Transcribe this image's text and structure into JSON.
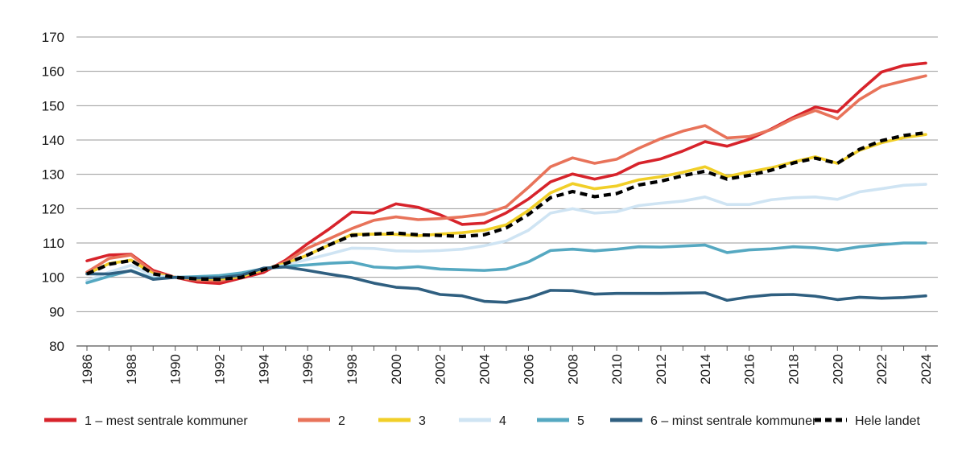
{
  "chart_data": {
    "type": "line",
    "title": "",
    "xlabel": "",
    "ylabel": "",
    "ylim": [
      80,
      170
    ],
    "yticks": [
      80,
      90,
      100,
      110,
      120,
      130,
      140,
      150,
      160,
      170
    ],
    "xlim": [
      1986,
      2024
    ],
    "xticks": [
      1986,
      1988,
      1990,
      1992,
      1994,
      1996,
      1998,
      2000,
      2002,
      2004,
      2006,
      2008,
      2010,
      2012,
      2014,
      2016,
      2018,
      2020,
      2022,
      2024
    ],
    "grid": "horizontal",
    "legend_position": "bottom",
    "x": [
      1986,
      1987,
      1988,
      1989,
      1990,
      1991,
      1992,
      1993,
      1994,
      1995,
      1996,
      1997,
      1998,
      1999,
      2000,
      2001,
      2002,
      2003,
      2004,
      2005,
      2006,
      2007,
      2008,
      2009,
      2010,
      2011,
      2012,
      2013,
      2014,
      2015,
      2016,
      2017,
      2018,
      2019,
      2020,
      2021,
      2022,
      2023,
      2024
    ],
    "series": [
      {
        "name": "1 – mest sentrale kommuner",
        "color": "#d7232b",
        "dash": false,
        "values": [
          104.8,
          106.5,
          106.7,
          102.0,
          100.0,
          98.6,
          98.2,
          99.8,
          101.4,
          105.0,
          109.8,
          114.2,
          119.0,
          118.7,
          121.4,
          120.4,
          118.2,
          115.4,
          115.8,
          118.8,
          122.8,
          127.8,
          130.1,
          128.6,
          130.0,
          133.2,
          134.5,
          136.8,
          139.5,
          138.2,
          140.2,
          143.2,
          146.6,
          149.6,
          148.2,
          154.2,
          159.8,
          161.7,
          162.4
        ]
      },
      {
        "name": "2",
        "color": "#e8735a",
        "dash": false,
        "values": [
          101.5,
          105.5,
          106.5,
          101.5,
          100.0,
          99.2,
          99.0,
          100.2,
          102.0,
          104.5,
          108.5,
          111.3,
          114.2,
          116.6,
          117.6,
          116.8,
          117.1,
          117.6,
          118.4,
          120.6,
          126.2,
          132.2,
          134.8,
          133.2,
          134.4,
          137.6,
          140.4,
          142.6,
          144.2,
          140.6,
          141.0,
          143.0,
          146.2,
          148.6,
          146.2,
          151.8,
          155.6,
          157.2,
          158.7
        ]
      },
      {
        "name": "3",
        "color": "#f1cf28",
        "dash": false,
        "values": [
          101.0,
          104.0,
          105.0,
          101.0,
          100.0,
          99.6,
          99.5,
          100.2,
          102.3,
          104.0,
          106.5,
          109.5,
          112.5,
          112.6,
          112.5,
          112.1,
          112.6,
          113.0,
          113.7,
          115.3,
          119.5,
          124.6,
          127.3,
          125.8,
          126.6,
          128.4,
          129.3,
          130.6,
          132.2,
          129.4,
          130.7,
          131.9,
          133.6,
          135.1,
          133.2,
          137.0,
          139.2,
          140.7,
          141.6
        ]
      },
      {
        "name": "4",
        "color": "#cfe4f3",
        "dash": false,
        "values": [
          99.0,
          101.5,
          103.5,
          100.5,
          100.0,
          100.0,
          100.3,
          101.0,
          102.5,
          103.5,
          105.2,
          106.8,
          108.5,
          108.4,
          107.7,
          107.6,
          107.8,
          108.2,
          109.2,
          110.6,
          113.7,
          118.7,
          120.0,
          118.7,
          119.1,
          120.9,
          121.6,
          122.2,
          123.4,
          121.2,
          121.2,
          122.6,
          123.2,
          123.4,
          122.7,
          124.9,
          125.8,
          126.8,
          127.1
        ]
      },
      {
        "name": "5",
        "color": "#55a8c1",
        "dash": false,
        "values": [
          98.4,
          100.3,
          102.0,
          99.6,
          100.0,
          100.2,
          100.5,
          101.3,
          102.5,
          103.2,
          103.6,
          104.1,
          104.4,
          103.0,
          102.7,
          103.1,
          102.4,
          102.2,
          102.0,
          102.4,
          104.5,
          107.8,
          108.2,
          107.7,
          108.2,
          108.9,
          108.8,
          109.1,
          109.4,
          107.2,
          108.0,
          108.3,
          108.9,
          108.6,
          107.9,
          108.9,
          109.5,
          110.0,
          110.0
        ]
      },
      {
        "name": "6 – minst sentrale kommuner",
        "color": "#2f5f80",
        "dash": false,
        "values": [
          101.0,
          101.0,
          101.9,
          99.4,
          100.0,
          99.8,
          99.9,
          100.6,
          102.7,
          103.0,
          102.0,
          100.9,
          99.9,
          98.3,
          97.1,
          96.7,
          95.0,
          94.6,
          93.0,
          92.7,
          94.0,
          96.2,
          96.1,
          95.1,
          95.3,
          95.3,
          95.3,
          95.4,
          95.5,
          93.3,
          94.3,
          94.9,
          95.0,
          94.5,
          93.5,
          94.2,
          93.9,
          94.1,
          94.6
        ]
      },
      {
        "name": "Hele landet",
        "color": "#000000",
        "dash": true,
        "values": [
          101.0,
          103.8,
          104.9,
          101.0,
          100.0,
          99.5,
          99.4,
          100.0,
          102.2,
          104.0,
          106.5,
          109.5,
          112.2,
          112.6,
          112.9,
          112.4,
          112.2,
          111.9,
          112.4,
          114.4,
          118.3,
          123.2,
          125.0,
          123.5,
          124.4,
          126.9,
          128.0,
          129.6,
          130.9,
          128.6,
          129.7,
          131.2,
          133.3,
          134.7,
          133.2,
          137.3,
          139.8,
          141.3,
          142.1
        ]
      }
    ]
  }
}
